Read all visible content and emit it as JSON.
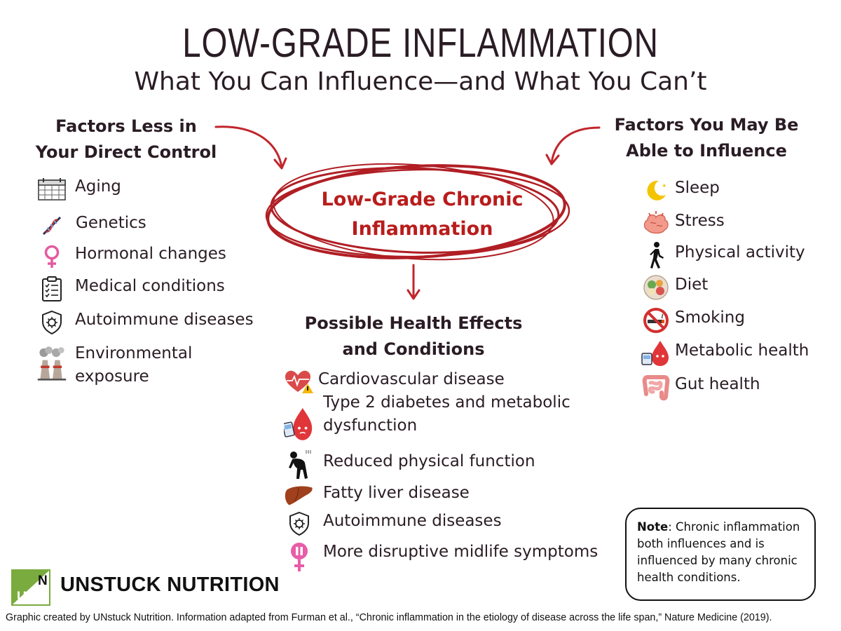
{
  "header": {
    "title": "LOW-GRADE INFLAMMATION",
    "subtitle": "What You Can Influence—and What You Can’t"
  },
  "left": {
    "heading_line1": "Factors Less in",
    "heading_line2": "Your Direct Control",
    "items": [
      {
        "label": "Aging",
        "icon": "calendar-icon"
      },
      {
        "label": "Genetics",
        "icon": "dna-icon"
      },
      {
        "label": "Hormonal changes",
        "icon": "female-symbol-icon"
      },
      {
        "label": "Medical conditions",
        "icon": "clipboard-checklist-icon"
      },
      {
        "label": "Autoimmune diseases",
        "icon": "shield-virus-icon"
      },
      {
        "label_line1": "Environmental",
        "label_line2": "exposure",
        "icon": "factory-smoke-icon"
      }
    ]
  },
  "center": {
    "label_line1": "Low-Grade Chronic",
    "label_line2": "Inflammation",
    "effects_heading_line1": "Possible Health Effects",
    "effects_heading_line2": "and Conditions",
    "effects": [
      {
        "label": "Cardiovascular disease",
        "icon": "heart-warning-icon"
      },
      {
        "label_line1": "Type 2 diabetes and metabolic",
        "label_line2": "dysfunction",
        "icon": "blood-drop-glucose-icon"
      },
      {
        "label": "Reduced physical function",
        "icon": "tired-person-icon"
      },
      {
        "label": "Fatty liver disease",
        "icon": "liver-icon"
      },
      {
        "label": "Autoimmune diseases",
        "icon": "shield-virus-icon"
      },
      {
        "label": "More disruptive midlife symptoms",
        "icon": "female-symbol-pause-icon"
      }
    ]
  },
  "right": {
    "heading_line1": "Factors You May Be",
    "heading_line2": "Able to Influence",
    "items": [
      {
        "label": "Sleep",
        "icon": "moon-icon"
      },
      {
        "label": "Stress",
        "icon": "stressed-brain-icon"
      },
      {
        "label": "Physical activity",
        "icon": "walking-person-icon"
      },
      {
        "label": "Diet",
        "icon": "food-bowl-icon"
      },
      {
        "label": "Smoking",
        "icon": "no-smoking-icon"
      },
      {
        "label": "Metabolic health",
        "icon": "blood-drop-glucose-icon"
      },
      {
        "label": "Gut health",
        "icon": "intestine-icon"
      }
    ]
  },
  "note": {
    "bold": "Note",
    "text": ": Chronic inflammation both influences and is influenced by many chronic health conditions."
  },
  "brand": {
    "logo_letter_top": "N",
    "logo_letter_bottom": "U",
    "name": "UNSTUCK NUTRITION"
  },
  "credit": "Graphic created by UNstuck Nutrition. Information adapted from Furman et al., “Chronic inflammation in the etiology of disease across the life span,” Nature Medicine (2019).",
  "colors": {
    "accent_red": "#b91c1c",
    "text_dark": "#2a1c24",
    "logo_green": "#7aab3e"
  }
}
